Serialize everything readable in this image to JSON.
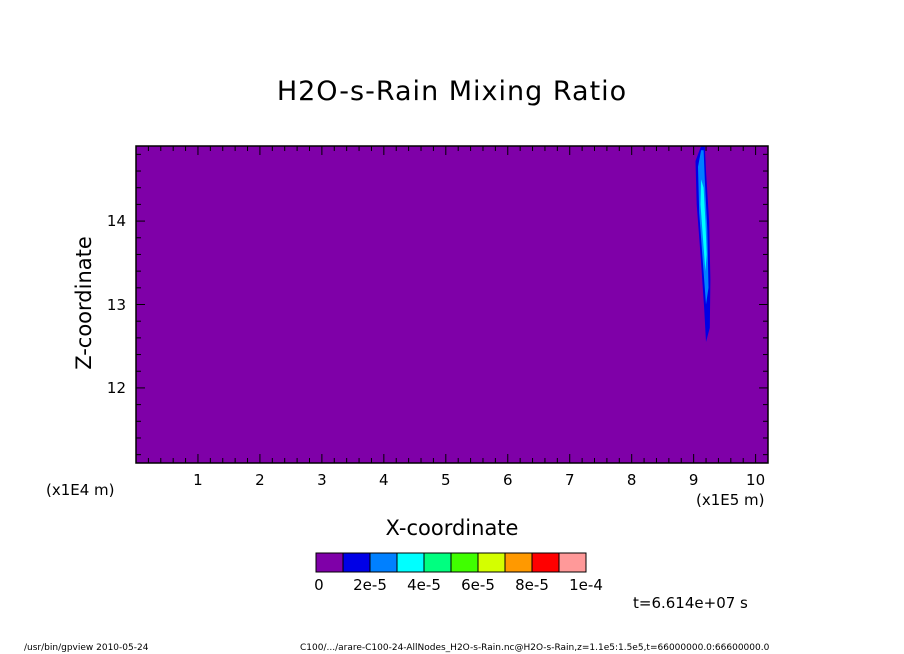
{
  "chart_data": {
    "type": "heatmap",
    "title": "H2O-s-Rain Mixing Ratio",
    "xlabel": "X-coordinate",
    "ylabel": "Z-coordinate",
    "x_multiplier_label": "(x1E5 m)",
    "y_multiplier_label": "(x1E4 m)",
    "xlim": [
      0,
      10.2
    ],
    "ylim": [
      11.1,
      14.9
    ],
    "x_ticks": [
      1,
      2,
      3,
      4,
      5,
      6,
      7,
      8,
      9,
      10
    ],
    "y_ticks": [
      12,
      13,
      14
    ],
    "x_tick_labels": [
      "1",
      "2",
      "3",
      "4",
      "5",
      "6",
      "7",
      "8",
      "9",
      "10"
    ],
    "y_tick_labels": [
      "12",
      "13",
      "14"
    ],
    "background_level": 0,
    "colorbar": {
      "colors": [
        "#7f00a8",
        "#0000e6",
        "#0080ff",
        "#00ffff",
        "#00ff80",
        "#40ff00",
        "#d4ff00",
        "#ff9900",
        "#ff0000",
        "#ff9999"
      ],
      "labels": [
        "0",
        "2e-5",
        "4e-5",
        "6e-5",
        "8e-5",
        "1e-4"
      ]
    },
    "feature": {
      "description_level": "plume near x=9.1-9.25, z=12.55-14.9",
      "outer_blue": [
        [
          9.12,
          14.9
        ],
        [
          9.03,
          14.72
        ],
        [
          9.05,
          14.2
        ],
        [
          9.12,
          13.5
        ],
        [
          9.17,
          12.95
        ],
        [
          9.2,
          12.55
        ],
        [
          9.26,
          12.72
        ],
        [
          9.27,
          13.3
        ],
        [
          9.25,
          14.0
        ],
        [
          9.2,
          14.6
        ],
        [
          9.18,
          14.9
        ]
      ],
      "mid_blue": [
        [
          9.12,
          14.85
        ],
        [
          9.07,
          14.65
        ],
        [
          9.09,
          14.1
        ],
        [
          9.15,
          13.5
        ],
        [
          9.2,
          13.0
        ],
        [
          9.24,
          13.2
        ],
        [
          9.22,
          13.9
        ],
        [
          9.18,
          14.5
        ],
        [
          9.16,
          14.85
        ]
      ],
      "cyan_core": [
        [
          9.12,
          14.5
        ],
        [
          9.11,
          14.2
        ],
        [
          9.15,
          13.8
        ],
        [
          9.19,
          13.4
        ],
        [
          9.21,
          13.6
        ],
        [
          9.19,
          14.0
        ],
        [
          9.16,
          14.4
        ]
      ]
    }
  },
  "time_label": "t=6.614e+07 s",
  "footer": {
    "left": "/usr/bin/gpview  2010-05-24",
    "right": "C100/.../arare-C100-24-AllNodes_H2O-s-Rain.nc@H2O-s-Rain,z=1.1e5:1.5e5,t=66000000.0:66600000.0"
  }
}
